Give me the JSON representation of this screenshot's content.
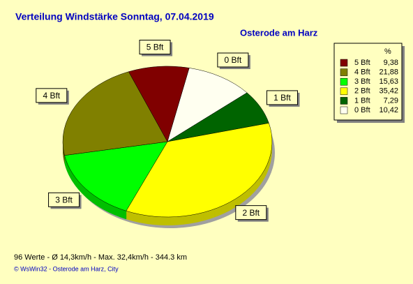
{
  "chart_data": {
    "type": "pie",
    "title": "Verteilung Windstärke  Sonntag, 07.04.2019",
    "subtitle": "Osterode am Harz",
    "categories": [
      "0 Bft",
      "1 Bft",
      "2 Bft",
      "3 Bft",
      "4 Bft",
      "5 Bft"
    ],
    "values": [
      10.42,
      7.29,
      35.42,
      15.63,
      21.88,
      9.38
    ],
    "value_labels": [
      "10,42",
      "7,29",
      "35,42",
      "15,63",
      "21,88",
      "9,38"
    ],
    "colors": [
      "#fffff0",
      "#006400",
      "#ffff00",
      "#00ff00",
      "#808000",
      "#800000"
    ],
    "legend_header": "%",
    "footer": "96 Werte   -   Ø 14,3km/h  -  Max. 32,4km/h   -   344.3 km",
    "credit": "© WsWin32  -  Osterode am Harz, City"
  }
}
